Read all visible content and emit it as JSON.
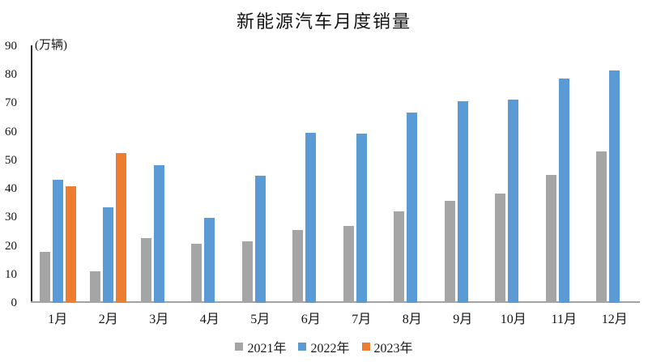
{
  "page": {
    "background": "#FFFFFF"
  },
  "chart_data": {
    "type": "bar",
    "title": "新能源汽车月度销量",
    "ylabel": "(万辆)",
    "xlabel": "",
    "ylim": [
      0,
      90
    ],
    "ytick_step": 10,
    "grid": false,
    "legend_position": "bottom",
    "axis_color": "#A3A3A3",
    "categories": [
      "1月",
      "2月",
      "3月",
      "4月",
      "5月",
      "6月",
      "7月",
      "8月",
      "9月",
      "10月",
      "11月",
      "12月"
    ],
    "series": [
      {
        "name": "2021年",
        "color": "#A5A5A5",
        "values": [
          17.9,
          11.0,
          22.6,
          20.6,
          21.7,
          25.6,
          27.1,
          32.1,
          35.7,
          38.3,
          45.0,
          53.1
        ]
      },
      {
        "name": "2022年",
        "color": "#5B9BD5",
        "values": [
          43.1,
          33.4,
          48.4,
          29.9,
          44.7,
          59.6,
          59.3,
          66.6,
          70.8,
          71.4,
          78.6,
          81.4
        ]
      },
      {
        "name": "2023年",
        "color": "#ED7D31",
        "values": [
          40.8,
          52.5,
          null,
          null,
          null,
          null,
          null,
          null,
          null,
          null,
          null,
          null
        ]
      }
    ]
  }
}
